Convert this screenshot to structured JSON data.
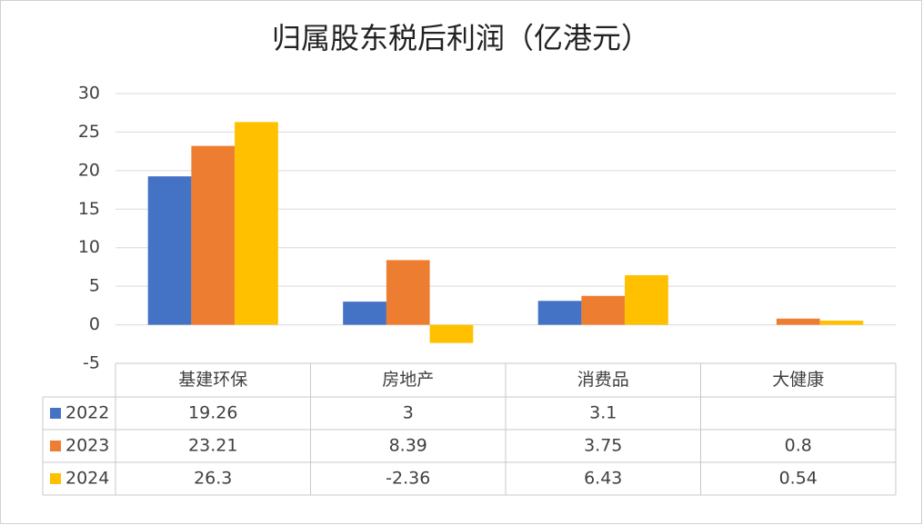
{
  "chart_data": {
    "type": "bar",
    "title": "归属股东税后利润（亿港元）",
    "categories": [
      "基建环保",
      "房地产",
      "消费品",
      "大健康"
    ],
    "series": [
      {
        "name": "2022",
        "color": "#4472c4",
        "values": [
          19.26,
          3,
          3.1,
          null
        ]
      },
      {
        "name": "2023",
        "color": "#ed7d31",
        "values": [
          23.21,
          8.39,
          3.75,
          0.8
        ]
      },
      {
        "name": "2024",
        "color": "#ffc000",
        "values": [
          26.3,
          -2.36,
          6.43,
          0.54
        ]
      }
    ],
    "ylim": [
      -5,
      30
    ],
    "yticks": [
      -5,
      0,
      5,
      10,
      15,
      20,
      25,
      30
    ],
    "grid": true
  }
}
